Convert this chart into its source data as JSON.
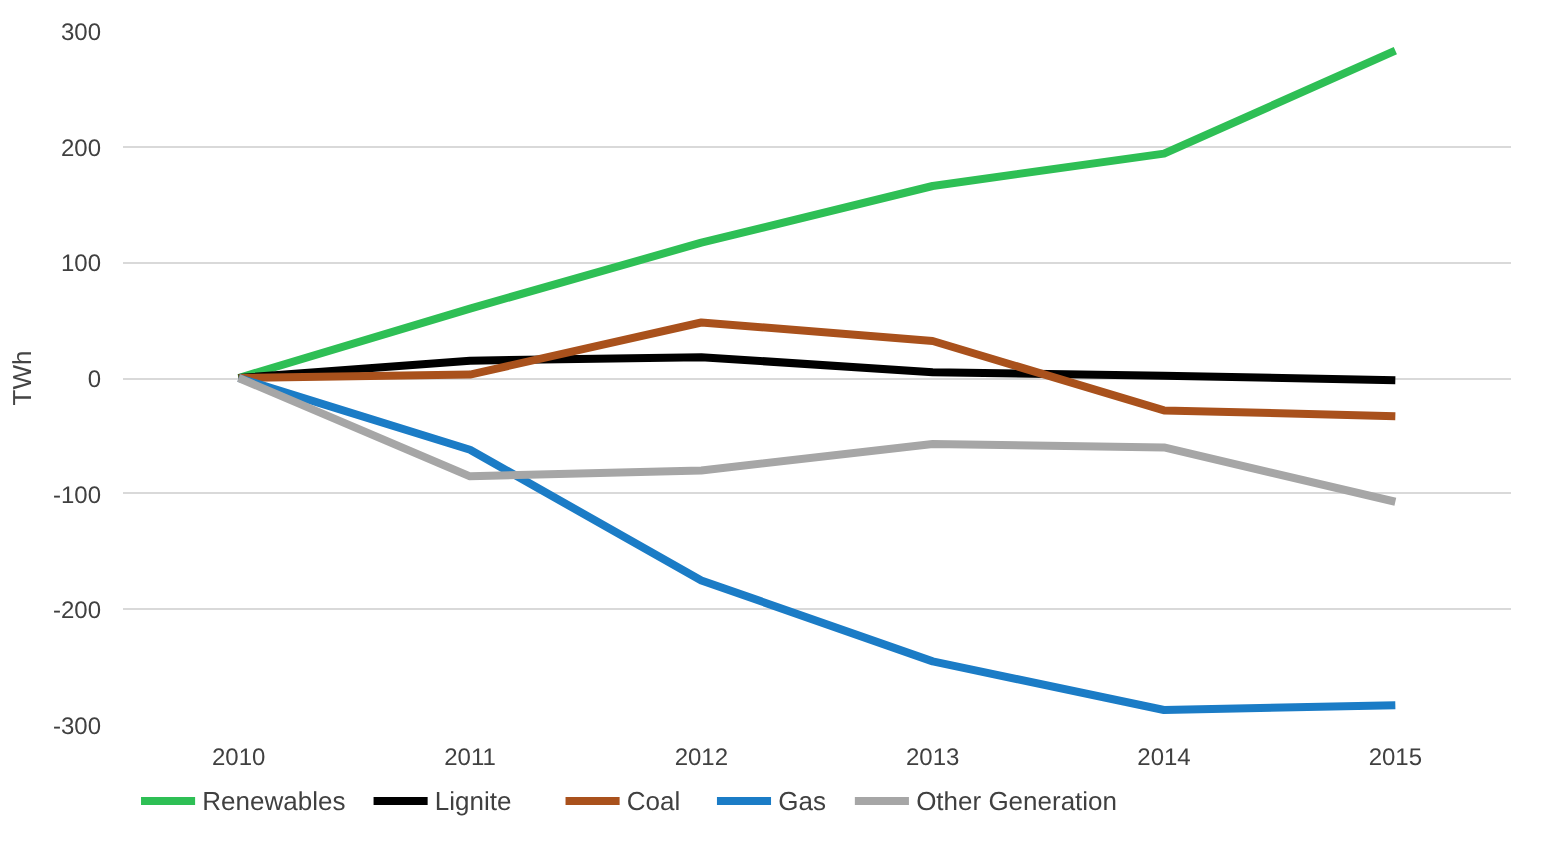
{
  "chart_data": {
    "type": "line",
    "ylabel": "TWh",
    "categories": [
      "2010",
      "2011",
      "2012",
      "2013",
      "2014",
      "2015"
    ],
    "ylim": [
      -300,
      300
    ],
    "yticks": [
      -300,
      -200,
      -100,
      0,
      100,
      200,
      300
    ],
    "grid": "y",
    "legend": "bottom",
    "line_style": "solid",
    "series": [
      {
        "name": "Renewables",
        "color": "#2ebf55",
        "values": [
          0,
          60,
          117,
          166,
          194,
          283
        ]
      },
      {
        "name": "Lignite",
        "color": "#000000",
        "values": [
          0,
          15,
          18,
          5,
          2,
          -2
        ]
      },
      {
        "name": "Coal",
        "color": "#a9511c",
        "values": [
          0,
          3,
          48,
          32,
          -28,
          -33
        ]
      },
      {
        "name": "Gas",
        "color": "#1b7cc6",
        "values": [
          0,
          -62,
          -175,
          -245,
          -287,
          -283
        ]
      },
      {
        "name": "Other Generation",
        "color": "#a6a6a6",
        "values": [
          0,
          -85,
          -80,
          -57,
          -60,
          -107
        ]
      }
    ]
  }
}
